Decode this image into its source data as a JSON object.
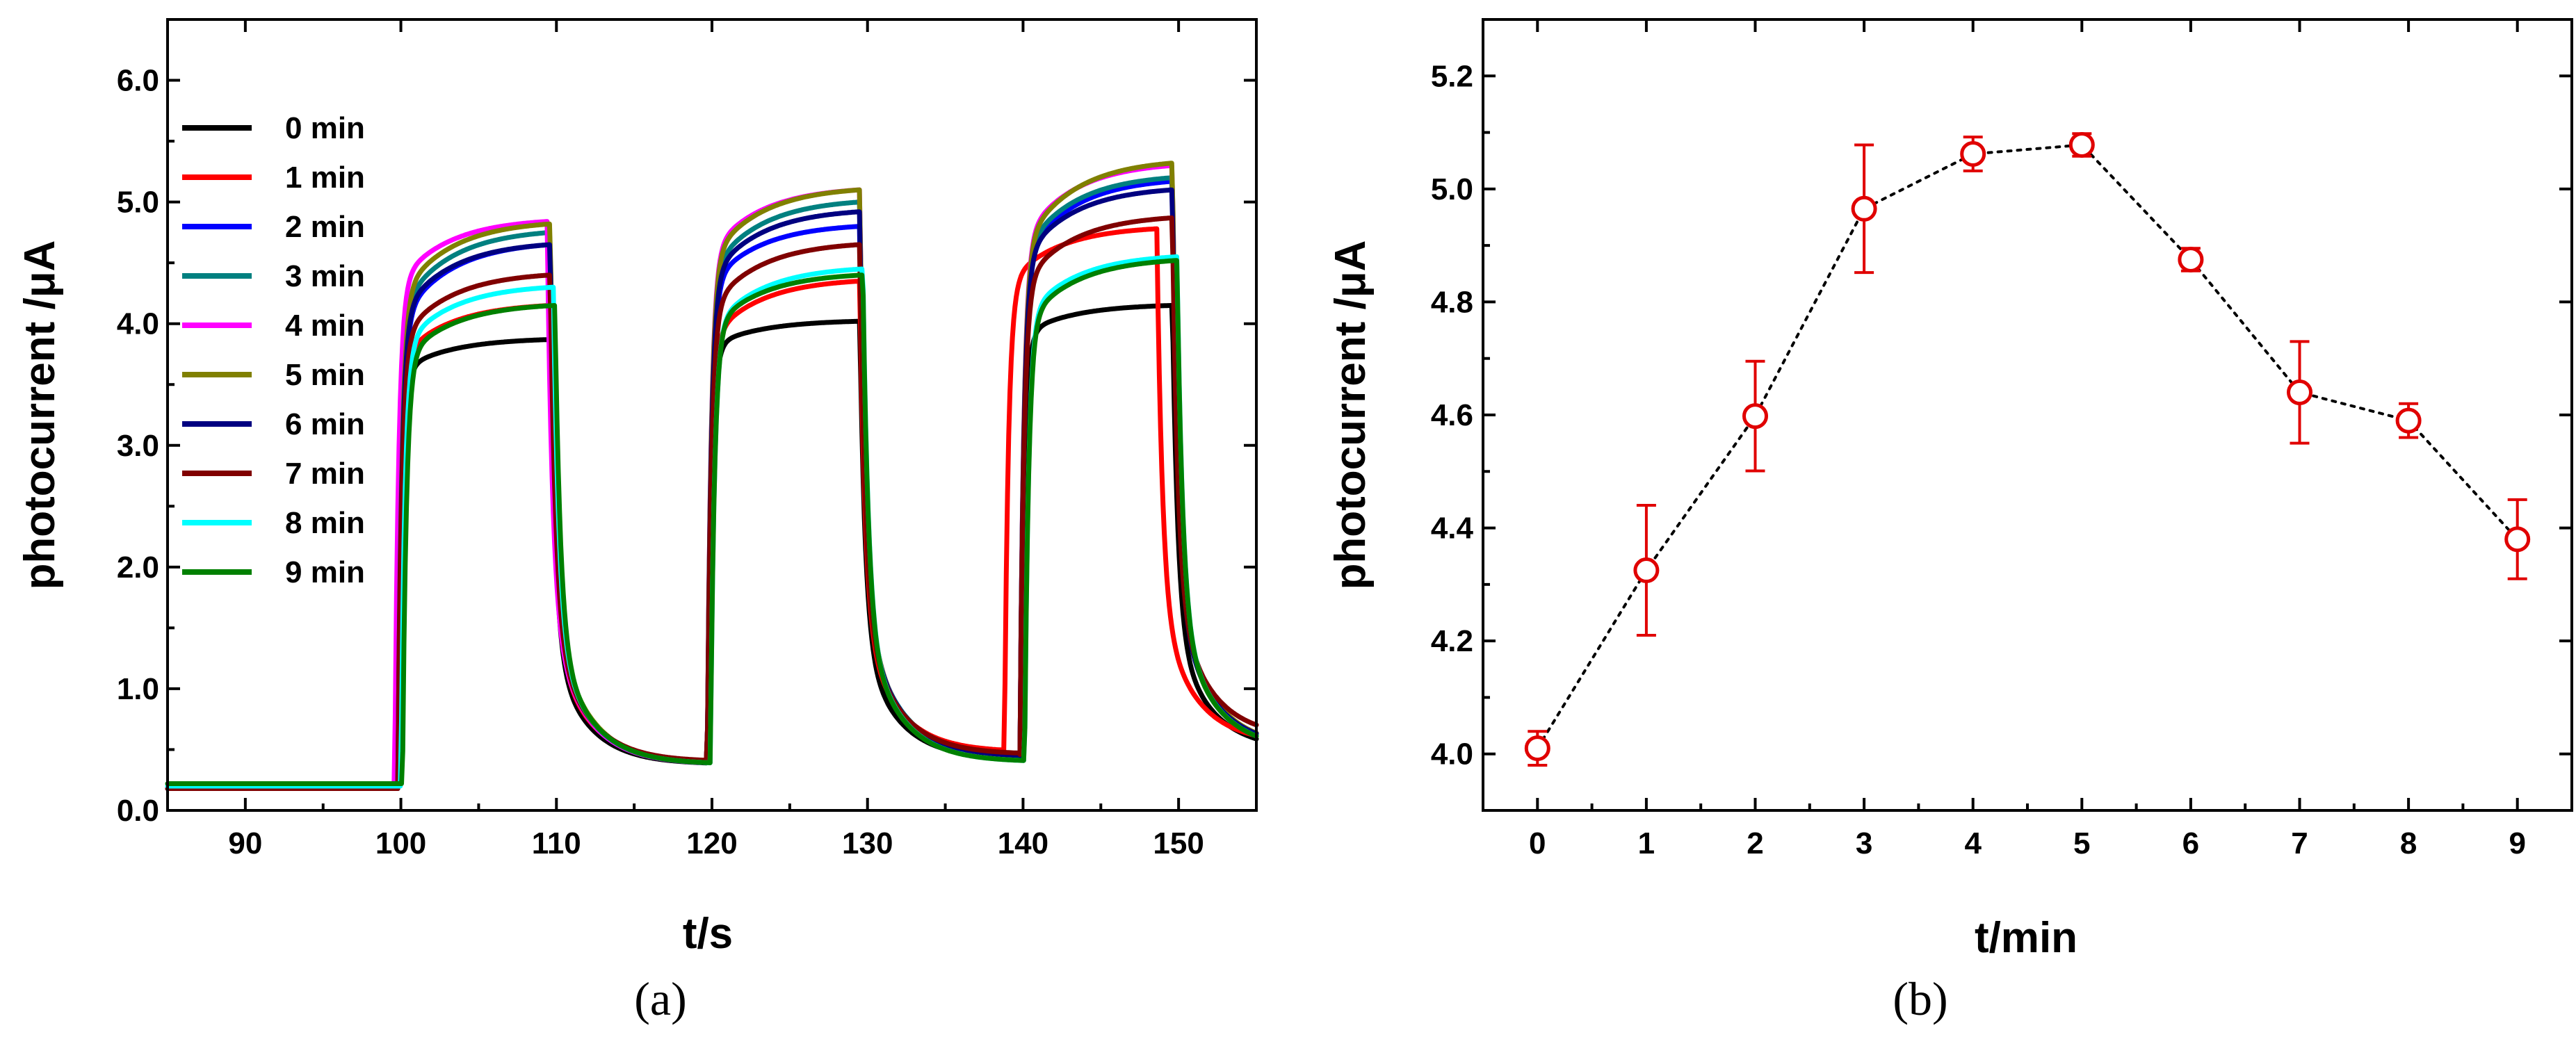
{
  "chart_data": [
    {
      "type": "line",
      "panel_label": "(a)",
      "xlabel": "t/s",
      "ylabel": "photocurrent /μA",
      "xlim": [
        85,
        155
      ],
      "ylim": [
        0,
        6.5
      ],
      "xticks": [
        90,
        100,
        110,
        120,
        130,
        140,
        150
      ],
      "xtick_labels": [
        "90",
        "100",
        "110",
        "120",
        "130",
        "140",
        "150"
      ],
      "yticks": [
        0,
        1,
        2,
        3,
        4,
        5,
        6
      ],
      "ytick_labels": [
        "0.0",
        "1.0",
        "2.0",
        "3.0",
        "4.0",
        "5.0",
        "6.0"
      ],
      "legend_position": "top-left",
      "series": [
        {
          "name": "0 min",
          "color": "#000000",
          "plateau_end": [
            3.87,
            4.02,
            4.15
          ],
          "plateau_start": [
            3.6,
            3.8,
            3.9
          ],
          "dark": [
            0.18,
            0.38,
            0.42,
            0.5
          ],
          "on_times": [
            99.8,
            119.7,
            139.8
          ]
        },
        {
          "name": "1 min",
          "color": "#ff0000",
          "plateau_end": [
            4.15,
            4.35,
            4.78
          ],
          "plateau_start": [
            3.7,
            3.85,
            4.3
          ],
          "dark": [
            0.18,
            0.4,
            0.48,
            0.55
          ],
          "on_times": [
            99.8,
            119.7,
            138.8
          ]
        },
        {
          "name": "2 min",
          "color": "#0000ff",
          "plateau_end": [
            4.65,
            4.8,
            5.17
          ],
          "plateau_start": [
            4.0,
            4.3,
            4.5
          ],
          "dark": [
            0.18,
            0.38,
            0.44,
            0.52
          ],
          "on_times": [
            99.8,
            119.7,
            139.8
          ]
        },
        {
          "name": "3 min",
          "color": "#008080",
          "plateau_end": [
            4.75,
            5.0,
            5.2
          ],
          "plateau_start": [
            4.1,
            4.4,
            4.55
          ],
          "dark": [
            0.18,
            0.38,
            0.44,
            0.52
          ],
          "on_times": [
            99.8,
            119.7,
            139.8
          ]
        },
        {
          "name": "4 min",
          "color": "#ff00ff",
          "plateau_end": [
            4.84,
            5.1,
            5.3
          ],
          "plateau_start": [
            4.3,
            4.55,
            4.65
          ],
          "dark": [
            0.18,
            0.38,
            0.42,
            0.52
          ],
          "on_times": [
            99.6,
            119.7,
            139.8
          ]
        },
        {
          "name": "5 min",
          "color": "#808000",
          "plateau_end": [
            4.82,
            5.1,
            5.32
          ],
          "plateau_start": [
            4.2,
            4.5,
            4.6
          ],
          "dark": [
            0.18,
            0.38,
            0.42,
            0.52
          ],
          "on_times": [
            99.8,
            119.7,
            139.8
          ]
        },
        {
          "name": "6 min",
          "color": "#000080",
          "plateau_end": [
            4.65,
            4.92,
            5.1
          ],
          "plateau_start": [
            4.05,
            4.35,
            4.5
          ],
          "dark": [
            0.18,
            0.38,
            0.44,
            0.52
          ],
          "on_times": [
            99.8,
            119.7,
            139.8
          ]
        },
        {
          "name": "7 min",
          "color": "#800000",
          "plateau_end": [
            4.4,
            4.65,
            4.87
          ],
          "plateau_start": [
            3.85,
            4.1,
            4.3
          ],
          "dark": [
            0.18,
            0.4,
            0.46,
            0.6
          ],
          "on_times": [
            99.8,
            119.7,
            139.8
          ]
        },
        {
          "name": "8 min",
          "color": "#00ffff",
          "plateau_end": [
            4.3,
            4.45,
            4.55
          ],
          "plateau_start": [
            3.8,
            3.95,
            4.05
          ],
          "dark": [
            0.2,
            0.38,
            0.4,
            0.5
          ],
          "on_times": [
            100.0,
            119.9,
            140.1
          ]
        },
        {
          "name": "9 min",
          "color": "#008000",
          "plateau_end": [
            4.15,
            4.4,
            4.52
          ],
          "plateau_start": [
            3.7,
            3.95,
            4.0
          ],
          "dark": [
            0.22,
            0.38,
            0.4,
            0.5
          ],
          "on_times": [
            100.1,
            119.9,
            140.1
          ]
        }
      ]
    },
    {
      "type": "scatter",
      "panel_label": "(b)",
      "xlabel": "t/min",
      "ylabel": "photocurrent /μA",
      "xlim": [
        -0.5,
        9.5
      ],
      "ylim": [
        3.9,
        5.3
      ],
      "xticks": [
        0,
        1,
        2,
        3,
        4,
        5,
        6,
        7,
        8,
        9
      ],
      "xtick_labels": [
        "0",
        "1",
        "2",
        "3",
        "4",
        "5",
        "6",
        "7",
        "8",
        "9"
      ],
      "yticks": [
        4.0,
        4.2,
        4.4,
        4.6,
        4.8,
        5.0,
        5.2
      ],
      "ytick_labels": [
        "4.0",
        "4.2",
        "4.4",
        "4.6",
        "4.8",
        "5.0",
        "5.2"
      ],
      "series": [
        {
          "name": "photocurrent",
          "color": "#e00000",
          "x": [
            0,
            1,
            2,
            3,
            4,
            5,
            6,
            7,
            8,
            9
          ],
          "y": [
            4.01,
            4.325,
            4.598,
            4.965,
            5.062,
            5.078,
            4.875,
            4.64,
            4.59,
            4.38
          ],
          "error": [
            0.03,
            0.115,
            0.097,
            0.113,
            0.03,
            0.02,
            0.02,
            0.09,
            0.03,
            0.07
          ]
        }
      ]
    }
  ]
}
